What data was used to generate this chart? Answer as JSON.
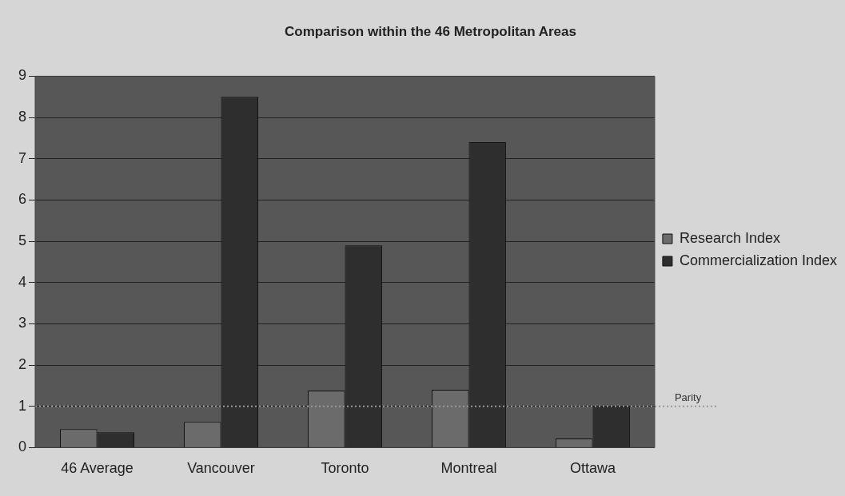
{
  "chart_data": {
    "type": "bar",
    "title": "Comparison within the 46 Metropolitan Areas",
    "categories": [
      "46 Average",
      "Vancouver",
      "Toronto",
      "Montreal",
      "Ottawa"
    ],
    "series": [
      {
        "name": "Research Index",
        "color": "#6b6b6b",
        "values": [
          0.45,
          0.62,
          1.38,
          1.4,
          0.22
        ]
      },
      {
        "name": "Commercialization Index",
        "color": "#2e2e2e",
        "values": [
          0.37,
          8.5,
          4.9,
          7.4,
          1.0
        ]
      }
    ],
    "ylim": [
      0,
      9
    ],
    "yticks": [
      0,
      1,
      2,
      3,
      4,
      5,
      6,
      7,
      8,
      9
    ],
    "grid": "y",
    "legend": "right",
    "ref_lines": [
      {
        "axis": "y",
        "value": 1,
        "label": "Parity",
        "color": "#9a9a9a",
        "line_style": "dotted"
      }
    ]
  }
}
